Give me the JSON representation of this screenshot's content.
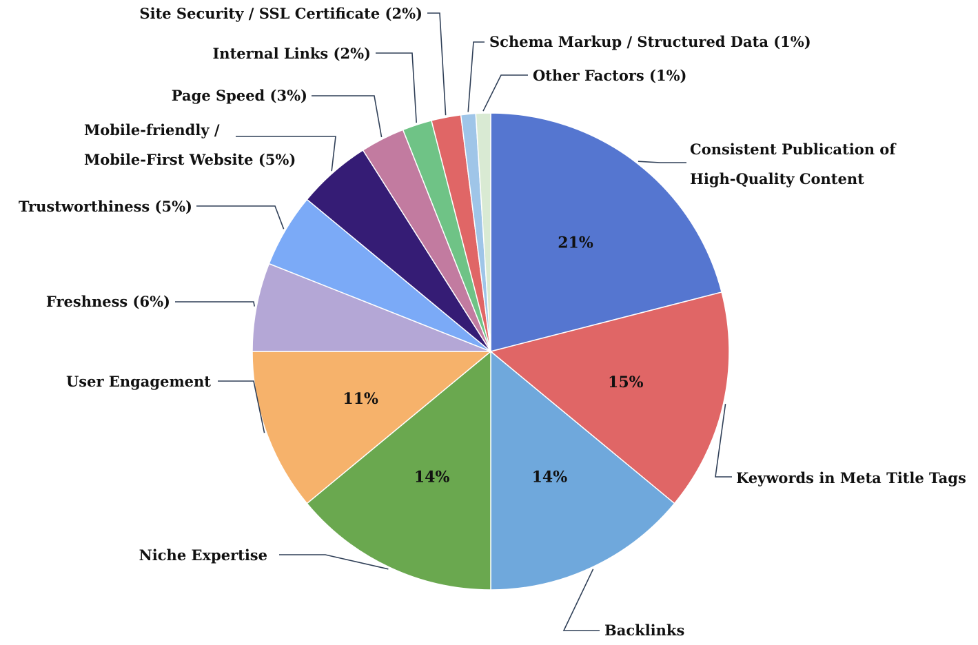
{
  "chart_data": {
    "type": "pie",
    "title": "",
    "slices": [
      {
        "label": "Consistent Publication of High-Quality Content",
        "label_lines": [
          "Consistent Publication of",
          "High-Quality Content"
        ],
        "value": 21,
        "value_label": "21%",
        "color": "#5576D0"
      },
      {
        "label": "Keywords in Meta Title Tags",
        "label_lines": [
          "Keywords in Meta Title Tags"
        ],
        "value": 15,
        "value_label": "15%",
        "color": "#E06666"
      },
      {
        "label": "Backlinks",
        "label_lines": [
          "Backlinks"
        ],
        "value": 14,
        "value_label": "14%",
        "color": "#6FA8DC"
      },
      {
        "label": "Niche Expertise",
        "label_lines": [
          "Niche Expertise"
        ],
        "value": 14,
        "value_label": "14%",
        "color": "#6AA84F"
      },
      {
        "label": "User Engagement",
        "label_lines": [
          "User Engagement"
        ],
        "value": 11,
        "value_label": "11%",
        "color": "#F6B26B"
      },
      {
        "label": "Freshness (6%)",
        "label_lines": [
          "Freshness (6%)"
        ],
        "value": 6,
        "value_label": "",
        "color": "#B4A7D6"
      },
      {
        "label": "Trustworthiness (5%)",
        "label_lines": [
          "Trustworthiness (5%)"
        ],
        "value": 5,
        "value_label": "",
        "color": "#7BAAF7"
      },
      {
        "label": "Mobile-friendly / Mobile-First Website (5%)",
        "label_lines": [
          "Mobile-friendly /",
          "Mobile-First Website (5%)"
        ],
        "value": 5,
        "value_label": "",
        "color": "#351C75"
      },
      {
        "label": "Page Speed (3%)",
        "label_lines": [
          "Page Speed (3%)"
        ],
        "value": 3,
        "value_label": "",
        "color": "#C27BA0"
      },
      {
        "label": "Internal Links (2%)",
        "label_lines": [
          "Internal Links (2%)"
        ],
        "value": 2,
        "value_label": "",
        "color": "#6FC386"
      },
      {
        "label": "Site Security / SSL Certificate (2%)",
        "label_lines": [
          "Site Security / SSL Certificate (2%)"
        ],
        "value": 2,
        "value_label": "",
        "color": "#E06666"
      },
      {
        "label": "Schema Markup / Structured Data (1%)",
        "label_lines": [
          "Schema Markup / Structured Data (1%)"
        ],
        "value": 1,
        "value_label": "",
        "color": "#9FC5E8"
      },
      {
        "label": "Other Factors (1%)",
        "label_lines": [
          "Other Factors (1%)"
        ],
        "value": 1,
        "value_label": "",
        "color": "#D9EAD3"
      }
    ],
    "start_angle": "12 o'clock",
    "direction": "clockwise",
    "legend": "none",
    "labels": "outside with leader lines"
  }
}
